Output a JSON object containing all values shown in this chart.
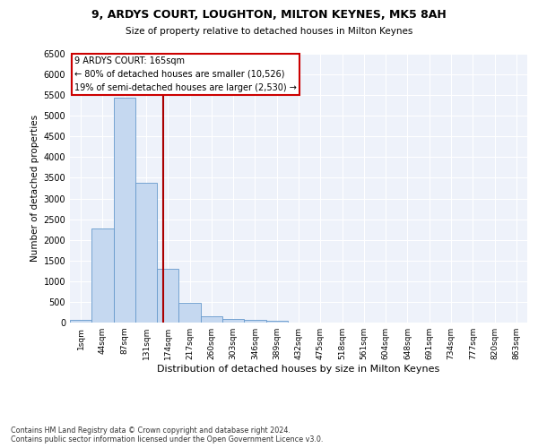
{
  "title_line1": "9, ARDYS COURT, LOUGHTON, MILTON KEYNES, MK5 8AH",
  "title_line2": "Size of property relative to detached houses in Milton Keynes",
  "xlabel": "Distribution of detached houses by size in Milton Keynes",
  "ylabel": "Number of detached properties",
  "footnote": "Contains HM Land Registry data © Crown copyright and database right 2024.\nContains public sector information licensed under the Open Government Licence v3.0.",
  "bin_labels": [
    "1sqm",
    "44sqm",
    "87sqm",
    "131sqm",
    "174sqm",
    "217sqm",
    "260sqm",
    "303sqm",
    "346sqm",
    "389sqm",
    "432sqm",
    "475sqm",
    "518sqm",
    "561sqm",
    "604sqm",
    "648sqm",
    "691sqm",
    "734sqm",
    "777sqm",
    "820sqm",
    "863sqm"
  ],
  "bar_heights": [
    70,
    2280,
    5430,
    3390,
    1310,
    480,
    160,
    90,
    60,
    50,
    10,
    5,
    0,
    0,
    0,
    0,
    0,
    0,
    0,
    0,
    0
  ],
  "bar_color": "#c5d8f0",
  "bar_edgecolor": "#6699cc",
  "ylim": [
    0,
    6500
  ],
  "yticks": [
    0,
    500,
    1000,
    1500,
    2000,
    2500,
    3000,
    3500,
    4000,
    4500,
    5000,
    5500,
    6000,
    6500
  ],
  "vline_x": 3.79,
  "vline_color": "#aa0000",
  "annotation_text": "9 ARDYS COURT: 165sqm\n← 80% of detached houses are smaller (10,526)\n19% of semi-detached houses are larger (2,530) →",
  "annotation_box_color": "#ffffff",
  "annotation_box_edgecolor": "#cc0000",
  "bg_color": "#eef2fa",
  "grid_color": "#ffffff"
}
